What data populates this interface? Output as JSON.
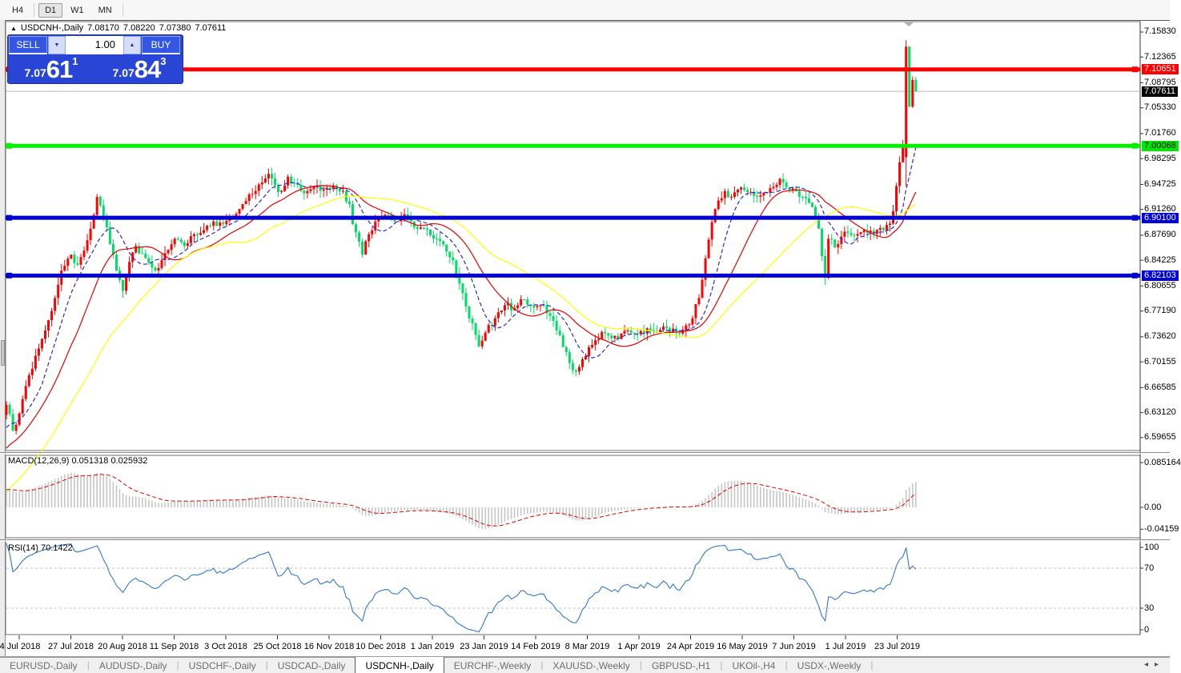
{
  "toolbar": {
    "timeframes": [
      {
        "label": "H4",
        "active": false
      },
      {
        "label": "D1",
        "active": true
      },
      {
        "label": "W1",
        "active": false
      },
      {
        "label": "MN",
        "active": false
      }
    ]
  },
  "chart_header": {
    "collapse_icon": "▲",
    "symbol": "USDCNH-,Daily",
    "open": "7.08170",
    "high": "7.08220",
    "low": "7.07380",
    "close": "7.07611"
  },
  "trade_panel": {
    "sell_label": "SELL",
    "buy_label": "BUY",
    "volume": "1.00",
    "spin_down_icon": "▼",
    "spin_up_icon": "▲",
    "sell_price": {
      "big_part": "7.07",
      "pips": "61",
      "point": "1"
    },
    "buy_price": {
      "big_part": "7.07",
      "pips": "84",
      "point": "3"
    }
  },
  "y_axis": {
    "price_labels": [
      "7.15830",
      "7.12365",
      "7.08795",
      "7.05330",
      "7.01760",
      "6.98295",
      "6.94725",
      "6.91260",
      "6.87690",
      "6.84225",
      "6.80655",
      "6.77190",
      "6.73620",
      "6.70155",
      "6.66585",
      "6.63120",
      "6.59655"
    ],
    "badges": [
      {
        "text": "7.10651",
        "bg": "#ff0000",
        "fg": "#ffffff"
      },
      {
        "text": "7.07611",
        "bg": "#000000",
        "fg": "#ffffff"
      },
      {
        "text": "7.00068",
        "bg": "#00e800",
        "fg": "#000000"
      },
      {
        "text": "6.90100",
        "bg": "#0000d8",
        "fg": "#ffffff"
      },
      {
        "text": "6.82103",
        "bg": "#0000d8",
        "fg": "#ffffff"
      }
    ]
  },
  "x_axis": {
    "dates": [
      "4 Jul 2018",
      "27 Jul 2018",
      "20 Aug 2018",
      "11 Sep 2018",
      "3 Oct 2018",
      "25 Oct 2018",
      "16 Nov 2018",
      "10 Dec 2018",
      "1 Jan 2019",
      "23 Jan 2019",
      "14 Feb 2019",
      "8 Mar 2019",
      "1 Apr 2019",
      "24 Apr 2019",
      "16 May 2019",
      "7 Jun 2019",
      "1 Jul 2019",
      "23 Jul 2019"
    ]
  },
  "macd": {
    "name": "MACD(12,26,9)",
    "value": "0.051318",
    "signal": "0.025932",
    "axis": [
      {
        "text": "0.085164",
        "v": 0.085164
      },
      {
        "text": "0.00",
        "v": 0.0
      },
      {
        "text": "-0.04159",
        "v": -0.04159
      }
    ]
  },
  "rsi": {
    "name": "RSI(14)",
    "value": "70.1422",
    "axis": [
      {
        "text": "100",
        "y": 684
      },
      {
        "text": "70",
        "y": 710
      },
      {
        "text": "30",
        "y": 760
      },
      {
        "text": "0",
        "y": 787
      }
    ]
  },
  "tabs": {
    "active_index": 4,
    "scroll_left_icon": "◂",
    "scroll_right_icon": "▸",
    "items": [
      "EURUSD-,Daily",
      "AUDUSD-,Daily",
      "USDCHF-,Daily",
      "USDCAD-,Daily",
      "USDCNH-,Daily",
      "EURCHF-,Weekly",
      "XAUUSD-,Weekly",
      "GBPUSD-,H1",
      "UKOil-,H4",
      "USDX-,Weekly"
    ]
  },
  "colors": {
    "bull_candle": "#ff0000",
    "bear_candle": "#00dc64",
    "ma_fast": "#2a2ad0",
    "ma_mid": "#e80000",
    "ma_slow": "#ffff00",
    "level_red": "#ff0000",
    "level_green": "#00f000",
    "level_blue": "#0000d0",
    "current_price_line": "#bbbbbb",
    "macd_hist": "#c6c6c6",
    "macd_signal": "#e00000",
    "rsi_line": "#3377cc",
    "rsi_levels": "#c0c0c0"
  },
  "chart_data": {
    "type": "candlestick",
    "symbol": "USDCNH-",
    "timeframe": "Daily",
    "title": "USDCNH-,Daily",
    "ohlc_current": {
      "open": 7.0817,
      "high": 7.0822,
      "low": 7.0738,
      "close": 7.07611
    },
    "bid": 7.07611,
    "ask": 7.07843,
    "y_range": {
      "top": 7.1727,
      "bottom": 6.5787
    },
    "x_tick_dates": [
      "4 Jul 2018",
      "27 Jul 2018",
      "20 Aug 2018",
      "11 Sep 2018",
      "3 Oct 2018",
      "25 Oct 2018",
      "16 Nov 2018",
      "10 Dec 2018",
      "1 Jan 2019",
      "23 Jan 2019",
      "14 Feb 2019",
      "8 Mar 2019",
      "1 Apr 2019",
      "24 Apr 2019",
      "16 May 2019",
      "7 Jun 2019",
      "1 Jul 2019",
      "23 Jul 2019"
    ],
    "candle_count": 282,
    "horizontal_levels": [
      {
        "price": 7.10651,
        "color": "#ff0000",
        "width": 5
      },
      {
        "price": 7.00068,
        "color": "#00f000",
        "width": 5
      },
      {
        "price": 6.901,
        "color": "#0000d0",
        "width": 5
      },
      {
        "price": 6.82103,
        "color": "#0000d0",
        "width": 5
      }
    ],
    "current_price": 7.07611,
    "close_anchors": [
      [
        0,
        6.642
      ],
      [
        2,
        6.606
      ],
      [
        4,
        6.63
      ],
      [
        6,
        6.668
      ],
      [
        9,
        6.71
      ],
      [
        12,
        6.745
      ],
      [
        15,
        6.79
      ],
      [
        17,
        6.828
      ],
      [
        20,
        6.85
      ],
      [
        22,
        6.836
      ],
      [
        25,
        6.87
      ],
      [
        27,
        6.905
      ],
      [
        28,
        6.93
      ],
      [
        29,
        6.918
      ],
      [
        31,
        6.888
      ],
      [
        33,
        6.85
      ],
      [
        35,
        6.815
      ],
      [
        36,
        6.8
      ],
      [
        38,
        6.84
      ],
      [
        40,
        6.862
      ],
      [
        43,
        6.845
      ],
      [
        46,
        6.828
      ],
      [
        49,
        6.852
      ],
      [
        52,
        6.872
      ],
      [
        55,
        6.862
      ],
      [
        58,
        6.878
      ],
      [
        61,
        6.884
      ],
      [
        64,
        6.896
      ],
      [
        67,
        6.892
      ],
      [
        70,
        6.902
      ],
      [
        73,
        6.92
      ],
      [
        76,
        6.934
      ],
      [
        79,
        6.95
      ],
      [
        81,
        6.962
      ],
      [
        83,
        6.946
      ],
      [
        85,
        6.938
      ],
      [
        87,
        6.958
      ],
      [
        89,
        6.948
      ],
      [
        92,
        6.935
      ],
      [
        95,
        6.944
      ],
      [
        98,
        6.94
      ],
      [
        101,
        6.946
      ],
      [
        104,
        6.938
      ],
      [
        106,
        6.92
      ],
      [
        107,
        6.892
      ],
      [
        109,
        6.868
      ],
      [
        110,
        6.85
      ],
      [
        112,
        6.878
      ],
      [
        114,
        6.896
      ],
      [
        117,
        6.905
      ],
      [
        120,
        6.896
      ],
      [
        123,
        6.906
      ],
      [
        126,
        6.888
      ],
      [
        129,
        6.886
      ],
      [
        132,
        6.872
      ],
      [
        135,
        6.864
      ],
      [
        138,
        6.842
      ],
      [
        140,
        6.81
      ],
      [
        142,
        6.778
      ],
      [
        144,
        6.755
      ],
      [
        146,
        6.723
      ],
      [
        148,
        6.742
      ],
      [
        151,
        6.762
      ],
      [
        154,
        6.78
      ],
      [
        157,
        6.776
      ],
      [
        160,
        6.788
      ],
      [
        163,
        6.777
      ],
      [
        166,
        6.78
      ],
      [
        168,
        6.765
      ],
      [
        170,
        6.745
      ],
      [
        172,
        6.722
      ],
      [
        174,
        6.7
      ],
      [
        176,
        6.688
      ],
      [
        178,
        6.705
      ],
      [
        181,
        6.725
      ],
      [
        184,
        6.743
      ],
      [
        186,
        6.738
      ],
      [
        189,
        6.733
      ],
      [
        192,
        6.745
      ],
      [
        195,
        6.74
      ],
      [
        198,
        6.748
      ],
      [
        201,
        6.742
      ],
      [
        204,
        6.748
      ],
      [
        207,
        6.742
      ],
      [
        210,
        6.752
      ],
      [
        212,
        6.762
      ],
      [
        214,
        6.79
      ],
      [
        216,
        6.845
      ],
      [
        218,
        6.895
      ],
      [
        220,
        6.925
      ],
      [
        222,
        6.938
      ],
      [
        224,
        6.93
      ],
      [
        227,
        6.943
      ],
      [
        230,
        6.937
      ],
      [
        233,
        6.932
      ],
      [
        236,
        6.942
      ],
      [
        239,
        6.955
      ],
      [
        241,
        6.943
      ],
      [
        244,
        6.938
      ],
      [
        247,
        6.928
      ],
      [
        249,
        6.916
      ],
      [
        251,
        6.886
      ],
      [
        252,
        6.848
      ],
      [
        253,
        6.818
      ],
      [
        254,
        6.872
      ],
      [
        256,
        6.86
      ],
      [
        258,
        6.875
      ],
      [
        260,
        6.88
      ],
      [
        262,
        6.876
      ],
      [
        265,
        6.884
      ],
      [
        268,
        6.879
      ],
      [
        271,
        6.884
      ],
      [
        273,
        6.893
      ],
      [
        274,
        6.91
      ],
      [
        275,
        6.945
      ],
      [
        276,
        6.978
      ],
      [
        277,
        7.0
      ],
      [
        278,
        7.138
      ],
      [
        279,
        7.055
      ],
      [
        280,
        7.092
      ],
      [
        281,
        7.07611
      ]
    ],
    "warmup_anchors": [
      [
        -45,
        6.398
      ],
      [
        -1,
        6.628
      ]
    ],
    "explicit_candles": {
      "278": {
        "o": 6.985,
        "h": 7.147,
        "l": 6.945,
        "c": 7.138
      }
    },
    "indicators": {
      "moving_averages": [
        {
          "period": 10,
          "color": "#2a2ad0",
          "dashed": true
        },
        {
          "period": 21,
          "color": "#e80000",
          "dashed": false
        },
        {
          "period": 44,
          "color": "#ffff00",
          "dashed": false
        }
      ],
      "macd": {
        "fast": 12,
        "slow": 26,
        "signal": 9,
        "value": 0.051318,
        "signal_value": 0.025932,
        "axis_max": 0.085164,
        "axis_min": -0.04159
      },
      "rsi": {
        "period": 14,
        "value": 70.1422,
        "upper_level": 70,
        "lower_level": 30
      }
    }
  }
}
